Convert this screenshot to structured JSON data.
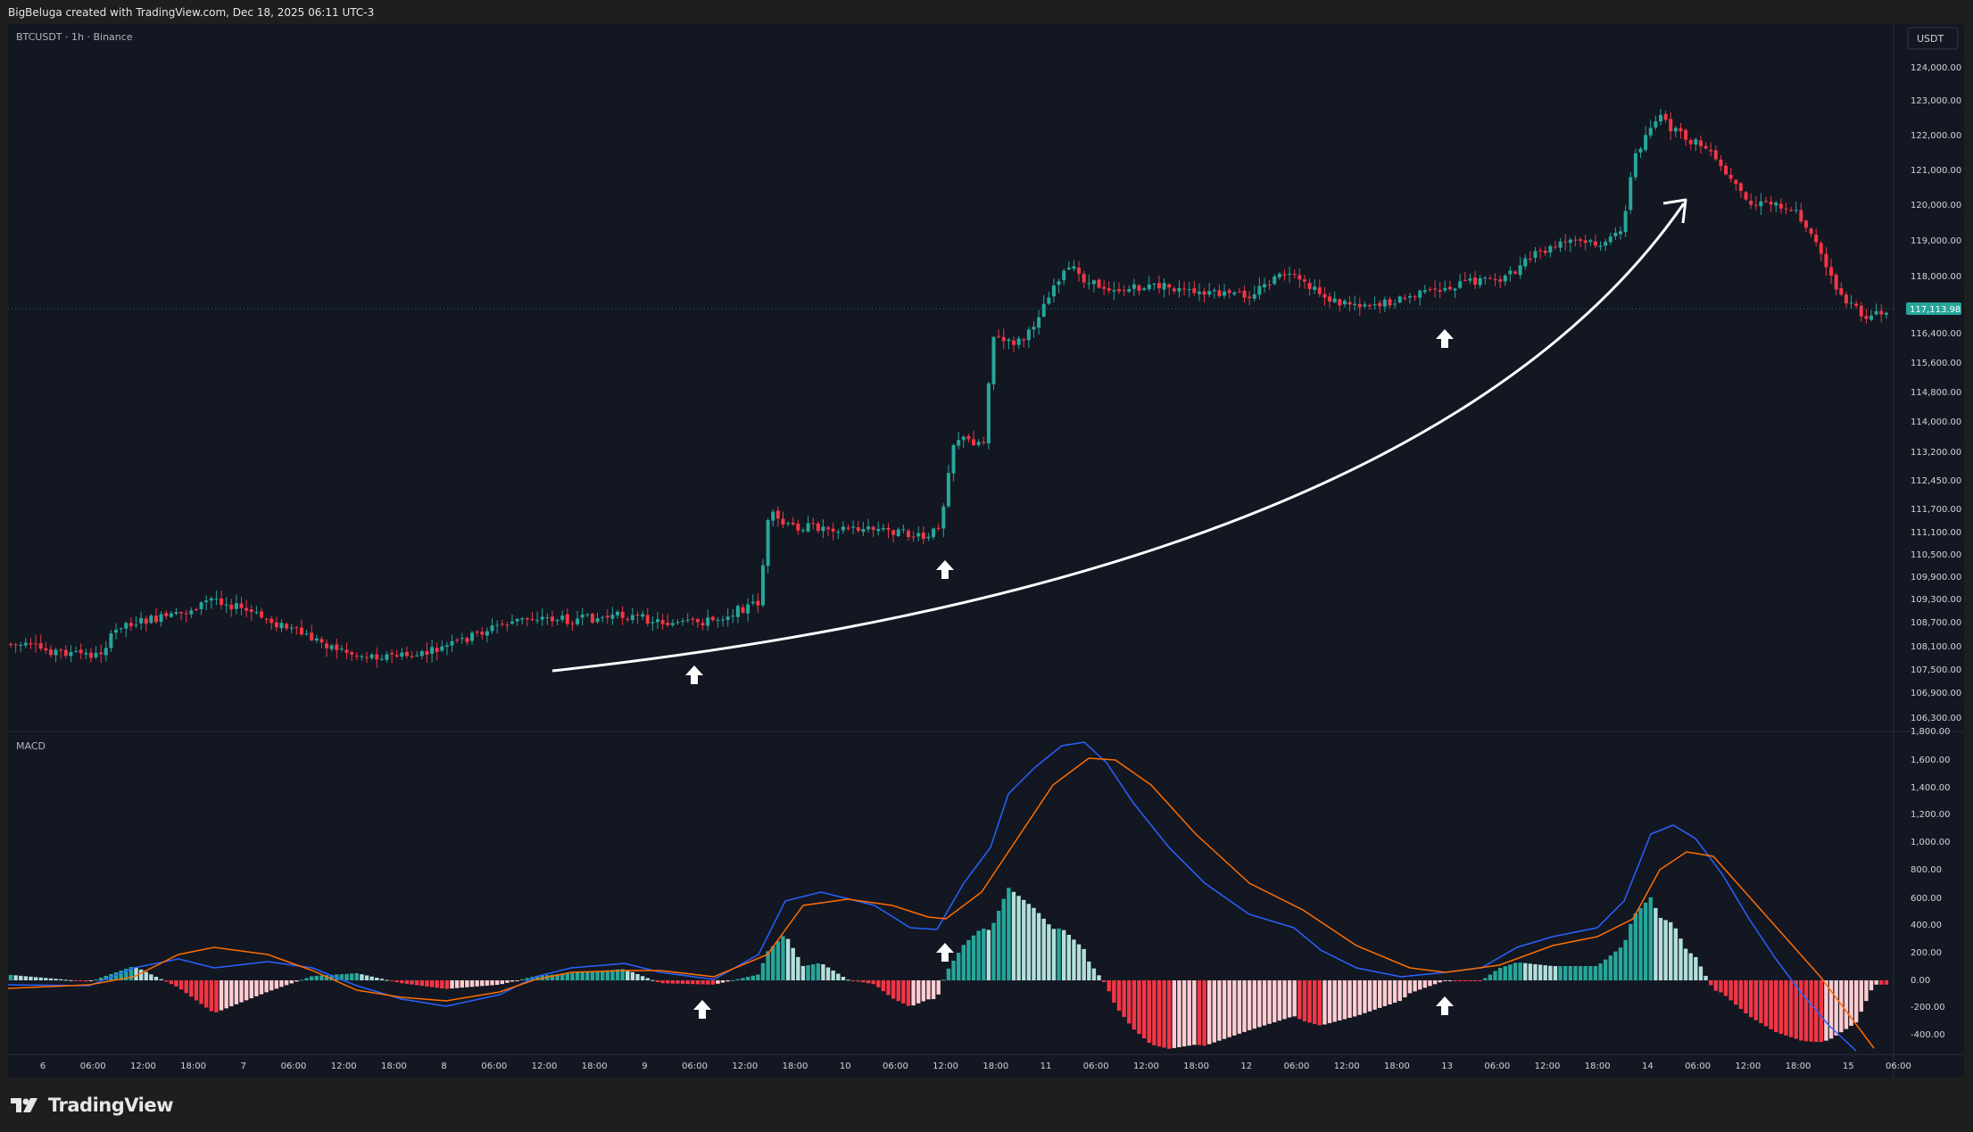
{
  "header": {
    "credit": "BigBeluga created with TradingView.com, Dec 18, 2025 06:11 UTC-3"
  },
  "chart": {
    "symbol_legend": "BTCUSDT · 1h · Binance",
    "currency_button": "USDT",
    "last_price_label": "117,113.98",
    "price_ticks": [
      "124,000.00",
      "123,000.00",
      "122,000.00",
      "121,000.00",
      "120,000.00",
      "119,000.00",
      "118,000.00",
      "116,400.00",
      "115,600.00",
      "114,800.00",
      "114,000.00",
      "113,200.00",
      "112,450.00",
      "111,700.00",
      "111,100.00",
      "110,500.00",
      "109,900.00",
      "109,300.00",
      "108,700.00",
      "108,100.00",
      "107,500.00",
      "106,900.00",
      "106,300.00"
    ],
    "time_ticks": [
      "6",
      "06:00",
      "12:00",
      "18:00",
      "7",
      "06:00",
      "12:00",
      "18:00",
      "8",
      "06:00",
      "12:00",
      "18:00",
      "9",
      "06:00",
      "12:00",
      "18:00",
      "10",
      "06:00",
      "12:00",
      "18:00",
      "11",
      "06:00",
      "12:00",
      "18:00",
      "12",
      "06:00",
      "12:00",
      "18:00",
      "13",
      "06:00",
      "12:00",
      "18:00",
      "14",
      "06:00",
      "12:00",
      "18:00",
      "15",
      "06:00"
    ]
  },
  "macd": {
    "legend": "MACD",
    "ticks": [
      "1,800.00",
      "1,600.00",
      "1,400.00",
      "1,200.00",
      "1,000.00",
      "800.00",
      "600.00",
      "400.00",
      "200.00",
      "0.00",
      "-200.00",
      "-400.00"
    ]
  },
  "footer": {
    "brand": "TradingView"
  },
  "colors": {
    "bull": "#26a69a",
    "bear": "#f23645",
    "macd_line": "#2962ff",
    "signal_line": "#ff6d00",
    "hist_bull_weak": "#b2dfdb",
    "hist_bear_weak": "#ffcdd2",
    "background": "#131722"
  }
}
